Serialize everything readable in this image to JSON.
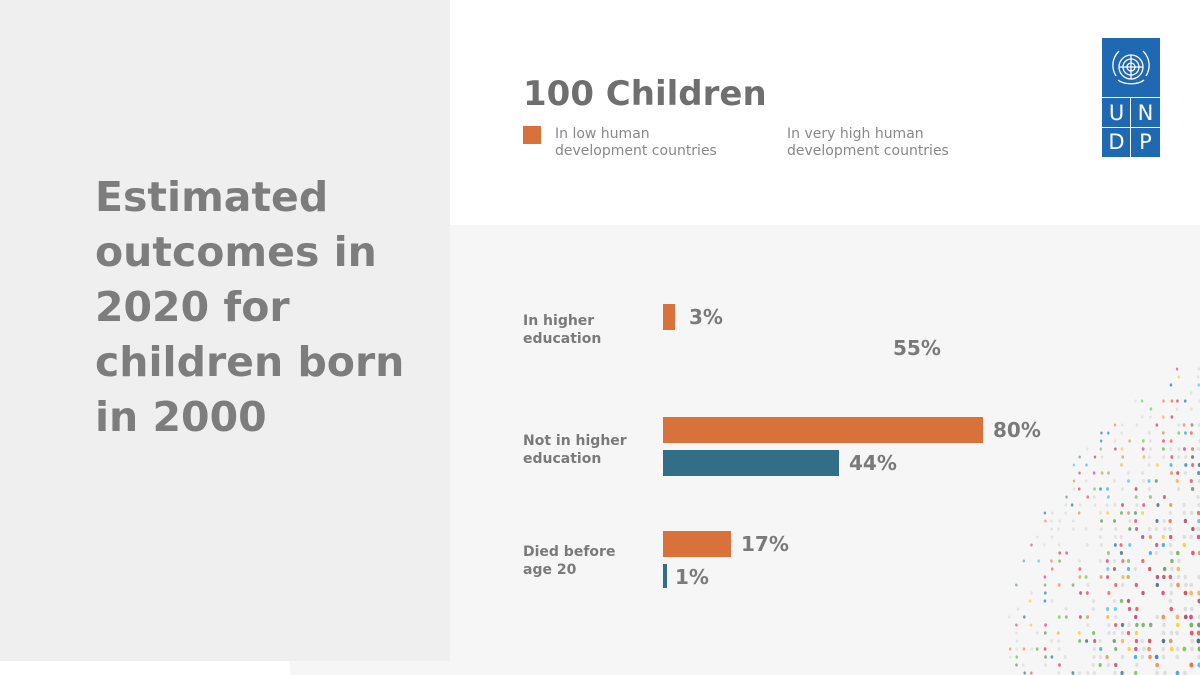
{
  "headline": "Estimated outcomes in 2020 for children born in 2000",
  "logo": {
    "letters": [
      "U",
      "N",
      "D",
      "P"
    ],
    "emblem": "un-emblem-icon"
  },
  "colors": {
    "low": "#d8713a",
    "high": "#326f87",
    "text": "#7a7a7a",
    "panel": "#efefef",
    "logo": "#1f68b2"
  },
  "chart_data": {
    "type": "bar",
    "orientation": "horizontal",
    "title": "100 Children",
    "categories": [
      "In higher education",
      "Not in higher education",
      "Died before age 20"
    ],
    "series": [
      {
        "name": "In low human development countries",
        "values": [
          3,
          80,
          17
        ],
        "color": "#d8713a"
      },
      {
        "name": "In very high human development countries",
        "values": [
          55,
          44,
          1
        ],
        "color": "#326f87"
      }
    ],
    "value_labels": [
      [
        "3%",
        "80%",
        "17%"
      ],
      [
        "55%",
        "44%",
        "1%"
      ]
    ],
    "unit": "%",
    "xlim": [
      0,
      100
    ]
  }
}
